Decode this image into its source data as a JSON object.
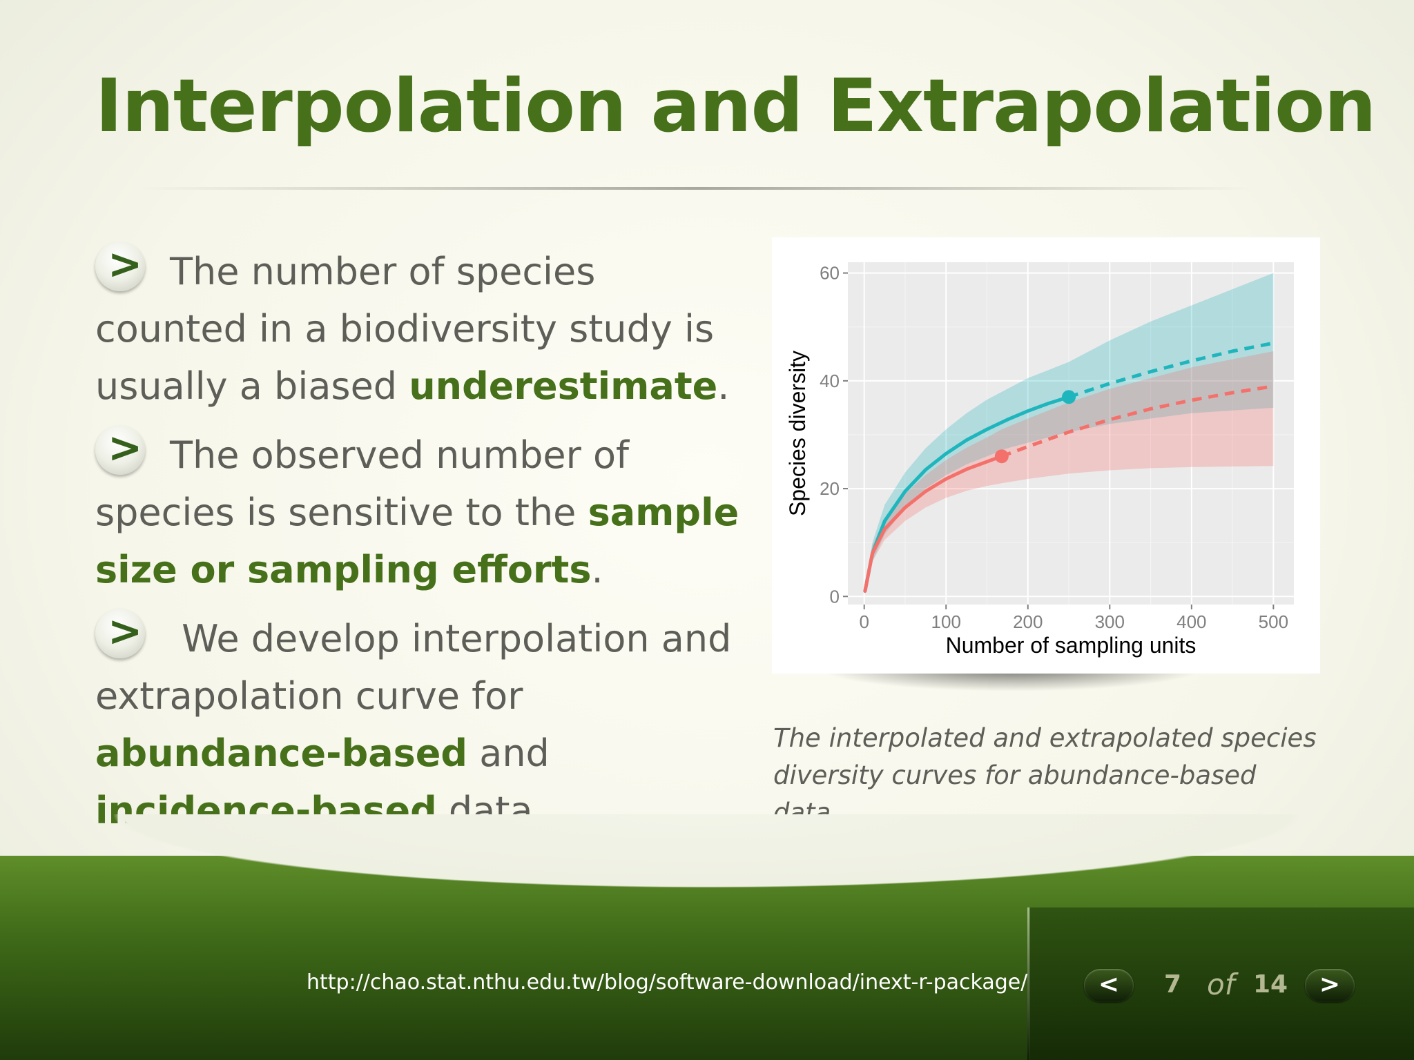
{
  "slide": {
    "title": "Interpolation and Extrapolation"
  },
  "bullets": [
    {
      "icon": "chevron-right-icon",
      "segments": [
        {
          "text": "The number of species counted in a biodiversity study is usually a biased ",
          "bold": false
        },
        {
          "text": "underestimate",
          "bold": true
        },
        {
          "text": ".",
          "bold": false
        }
      ]
    },
    {
      "icon": "chevron-right-icon",
      "segments": [
        {
          "text": "The observed number of species is sensitive to the ",
          "bold": false
        },
        {
          "text": "sample size or sampling efforts",
          "bold": true
        },
        {
          "text": ".",
          "bold": false
        }
      ]
    },
    {
      "icon": "chevron-right-icon",
      "segments": [
        {
          "text": " We develop interpolation and extrapolation curve for ",
          "bold": false
        },
        {
          "text": "abundance-based",
          "bold": true
        },
        {
          "text": " and ",
          "bold": false
        },
        {
          "text": "incidence-based",
          "bold": true
        },
        {
          "text": " data",
          "bold": false
        }
      ]
    }
  ],
  "chart_data": {
    "type": "line",
    "xlabel": "Number of sampling units",
    "ylabel": "Species diversity",
    "xlim": [
      -20,
      525
    ],
    "ylim": [
      -1.5,
      62
    ],
    "xticks": [
      0,
      100,
      200,
      300,
      400,
      500
    ],
    "yticks": [
      0,
      20,
      40,
      60
    ],
    "grid": true,
    "legend": "none",
    "series": [
      {
        "color": "#1fb5bd",
        "observed_point": {
          "x": 250,
          "y": 37
        },
        "interpolated": {
          "x": [
            1,
            10,
            25,
            50,
            75,
            100,
            125,
            150,
            175,
            200,
            225,
            250
          ],
          "y": [
            1,
            8,
            14,
            19.5,
            23.5,
            26.5,
            29,
            31,
            32.8,
            34.4,
            35.8,
            37
          ]
        },
        "extrapolated": {
          "x": [
            250,
            300,
            350,
            400,
            450,
            500
          ],
          "y": [
            37,
            39.5,
            41.7,
            43.7,
            45.5,
            47
          ]
        },
        "ci_upper": [
          1.5,
          10,
          17,
          23,
          27.5,
          31,
          34,
          36.5,
          38.5,
          40.5,
          42,
          43.5,
          47.5,
          51,
          54,
          57,
          60
        ],
        "ci_lower": [
          0.5,
          6.5,
          11.5,
          16.5,
          20,
          22.5,
          24.5,
          26,
          27.5,
          28.5,
          29.5,
          30.5,
          32,
          33,
          34,
          34.5,
          35
        ]
      },
      {
        "color": "#f4716b",
        "observed_point": {
          "x": 168,
          "y": 26
        },
        "interpolated": {
          "x": [
            1,
            10,
            25,
            50,
            75,
            100,
            125,
            150,
            168
          ],
          "y": [
            1,
            8,
            12.5,
            16.5,
            19.5,
            21.8,
            23.6,
            25,
            26
          ]
        },
        "extrapolated": {
          "x": [
            168,
            200,
            250,
            300,
            350,
            400,
            450,
            500
          ],
          "y": [
            26,
            27.8,
            30.5,
            32.8,
            34.8,
            36.4,
            37.8,
            39
          ]
        },
        "ci_upper": [
          1.5,
          9.5,
          14.5,
          19,
          22.5,
          25.3,
          27.6,
          29.5,
          31,
          33,
          36,
          38.5,
          40.5,
          42.5,
          44,
          45.5
        ],
        "ci_lower": [
          0.5,
          6.5,
          10.5,
          14,
          16.5,
          18.3,
          19.6,
          20.5,
          21,
          21.8,
          22.8,
          23.4,
          23.8,
          24,
          24.1,
          24.2
        ]
      }
    ]
  },
  "chart_caption": "The interpolated and extrapolated species diversity curves for abundance-based data.",
  "footer": {
    "url": "http://chao.stat.nthu.edu.tw/blog/software-download/inext-r-package/",
    "prev_icon": "chevron-left-icon",
    "next_icon": "chevron-right-icon",
    "prev_glyph": "<",
    "next_glyph": ">",
    "page_current": "7",
    "page_of": "of",
    "page_total": "14"
  }
}
